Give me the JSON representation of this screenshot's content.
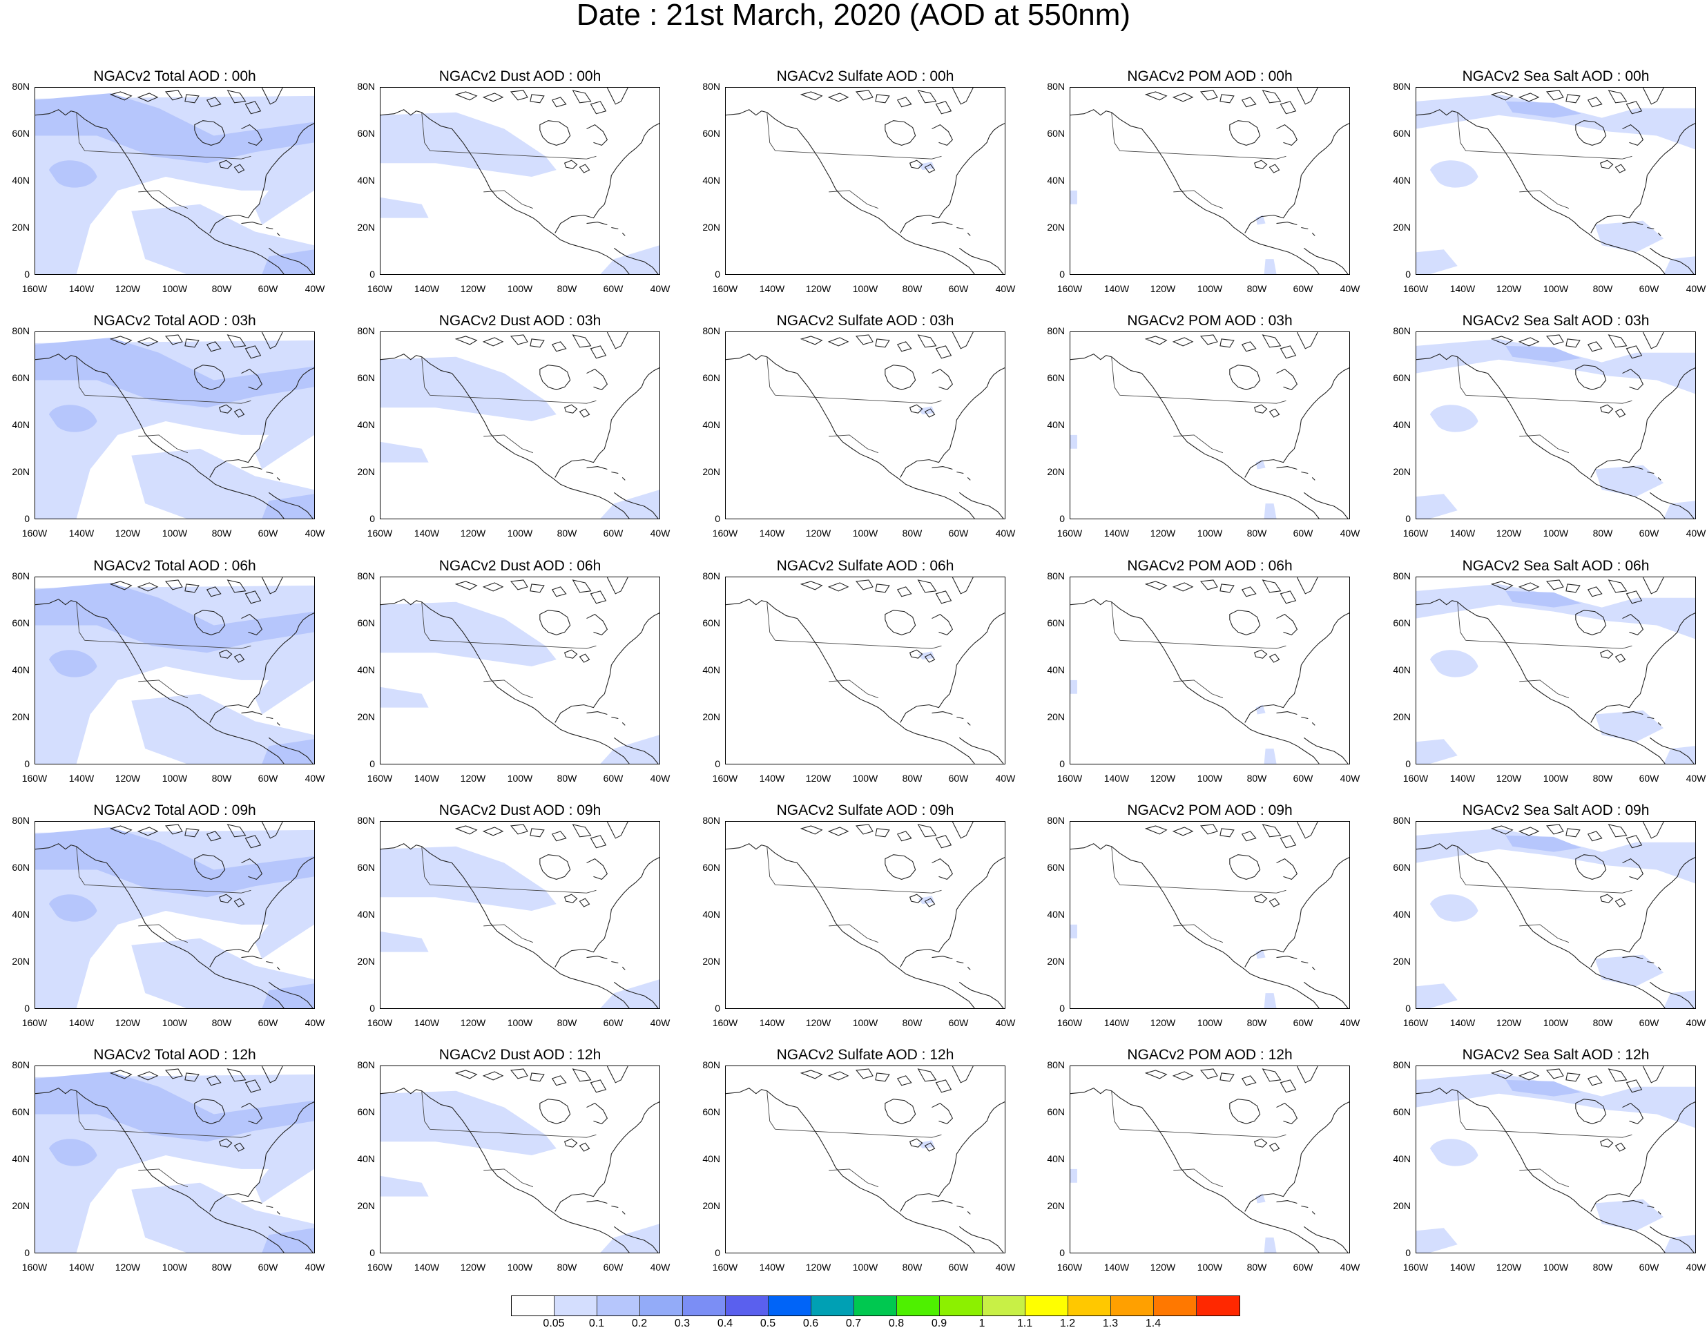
{
  "title": "Date : 21st March, 2020 (AOD at 550nm)",
  "lat_labels": [
    "80N",
    "60N",
    "40N",
    "20N",
    "0"
  ],
  "lon_labels": [
    "160W",
    "140W",
    "120W",
    "100W",
    "80W",
    "60W",
    "40W"
  ],
  "panels": [
    [
      "NGACv2 Total AOD : 00h",
      "NGACv2 Dust AOD : 00h",
      "NGACv2 Sulfate AOD : 00h",
      "NGACv2 POM AOD : 00h",
      "NGACv2 Sea Salt AOD : 00h"
    ],
    [
      "NGACv2 Total AOD : 03h",
      "NGACv2 Dust AOD : 03h",
      "NGACv2 Sulfate AOD : 03h",
      "NGACv2 POM AOD : 03h",
      "NGACv2 Sea Salt AOD : 03h"
    ],
    [
      "NGACv2 Total AOD : 06h",
      "NGACv2 Dust AOD : 06h",
      "NGACv2 Sulfate AOD : 06h",
      "NGACv2 POM AOD : 06h",
      "NGACv2 Sea Salt AOD : 06h"
    ],
    [
      "NGACv2 Total AOD : 09h",
      "NGACv2 Dust AOD : 09h",
      "NGACv2 Sulfate AOD : 09h",
      "NGACv2 POM AOD : 09h",
      "NGACv2 Sea Salt  AOD : 09h"
    ],
    [
      "NGACv2 Total AOD  : 12h",
      "NGACv2 Dust AOD : 12h",
      "NGACv2 Sulfate AOD : 12h",
      "NGACv2 POM  AOD : 12h",
      "NGACv2 Sea Salt  AOD : 12h"
    ]
  ],
  "colorbar": {
    "labels": [
      "0.05",
      "0.1",
      "0.2",
      "0.3",
      "0.4",
      "0.5",
      "0.6",
      "0.7",
      "0.8",
      "0.9",
      "1",
      "1.1",
      "1.2",
      "1.3",
      "1.4"
    ],
    "colors": [
      "#ffffff",
      "#d4defe",
      "#b6c6fc",
      "#93abf8",
      "#7b8ef5",
      "#5a60ee",
      "#0064f8",
      "#00a0b4",
      "#00c850",
      "#4ef000",
      "#8cf000",
      "#c8f046",
      "#ffff00",
      "#ffc800",
      "#ffa000",
      "#ff7800",
      "#ff2800"
    ]
  }
}
